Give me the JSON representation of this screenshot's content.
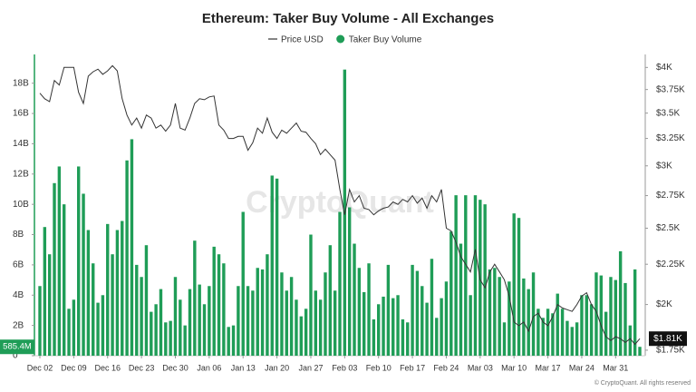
{
  "chart_data": {
    "type": "bar",
    "title": "Ethereum: Taker Buy Volume - All Exchanges",
    "watermark": "CryptoQuant",
    "footer": "© CryptoQuant. All rights reserved",
    "categories": [
      "Dec 02",
      null,
      null,
      null,
      null,
      null,
      null,
      "Dec 09",
      null,
      null,
      null,
      null,
      null,
      null,
      "Dec 16",
      null,
      null,
      null,
      null,
      null,
      null,
      "Dec 23",
      null,
      null,
      null,
      null,
      null,
      null,
      "Dec 30",
      null,
      null,
      null,
      null,
      null,
      null,
      "Jan 06",
      null,
      null,
      null,
      null,
      null,
      null,
      "Jan 13",
      null,
      null,
      null,
      null,
      null,
      null,
      "Jan 20",
      null,
      null,
      null,
      null,
      null,
      null,
      "Jan 27",
      null,
      null,
      null,
      null,
      null,
      null,
      "Feb 03",
      null,
      null,
      null,
      null,
      null,
      null,
      "Feb 10",
      null,
      null,
      null,
      null,
      null,
      null,
      "Feb 17",
      null,
      null,
      null,
      null,
      null,
      null,
      "Feb 24",
      null,
      null,
      null,
      null,
      null,
      null,
      "Mar 03",
      null,
      null,
      null,
      null,
      null,
      null,
      "Mar 10",
      null,
      null,
      null,
      null,
      null,
      null,
      "Mar 17",
      null,
      null,
      null,
      null,
      null,
      null,
      "Mar 24",
      null,
      null,
      null,
      null,
      null,
      null,
      "Mar 31",
      null,
      null,
      null,
      null,
      null
    ],
    "series": [
      {
        "name": "Price USD",
        "type": "line",
        "axis": "y2",
        "color": "#333333",
        "values": [
          3710,
          3650,
          3620,
          3850,
          3800,
          4000,
          4000,
          4000,
          3720,
          3600,
          3900,
          3950,
          3980,
          3920,
          3960,
          4020,
          3960,
          3650,
          3480,
          3380,
          3450,
          3350,
          3480,
          3450,
          3350,
          3380,
          3320,
          3380,
          3600,
          3350,
          3330,
          3450,
          3600,
          3650,
          3640,
          3670,
          3680,
          3380,
          3330,
          3250,
          3250,
          3270,
          3270,
          3140,
          3210,
          3350,
          3300,
          3450,
          3310,
          3250,
          3330,
          3300,
          3350,
          3400,
          3320,
          3310,
          3250,
          3200,
          3100,
          3150,
          3100,
          3050,
          2800,
          2600,
          2800,
          2700,
          2750,
          2650,
          2640,
          2600,
          2630,
          2650,
          2660,
          2700,
          2680,
          2720,
          2700,
          2750,
          2690,
          2730,
          2650,
          2750,
          2700,
          2800,
          2500,
          2480,
          2400,
          2300,
          2250,
          2200,
          2350,
          2150,
          2100,
          2200,
          2250,
          2200,
          2150,
          2050,
          1900,
          1880,
          1900,
          1850,
          1930,
          1950,
          1900,
          1880,
          1930,
          2000,
          1980,
          1970,
          1960,
          2000,
          2050,
          2070,
          2000,
          1960,
          1880,
          1820,
          1800,
          1820,
          1810,
          1790,
          1810,
          1780,
          1810
        ]
      },
      {
        "name": "Taker Buy Volume",
        "type": "bar",
        "color": "#1f9d57",
        "values": [
          4.6,
          8.5,
          6.7,
          11.4,
          12.5,
          10,
          3.1,
          3.7,
          12.5,
          10.7,
          8.3,
          6.1,
          3.5,
          4,
          8.7,
          6.7,
          8.3,
          8.9,
          12.9,
          14.3,
          6,
          5.2,
          7.3,
          2.9,
          3.4,
          4.4,
          2.2,
          2.3,
          5.2,
          3.7,
          2,
          4.4,
          7.6,
          4.7,
          3.4,
          4.6,
          7.2,
          6.7,
          6.1,
          1.9,
          2,
          4.6,
          9.5,
          4.6,
          4.3,
          5.8,
          5.7,
          6.7,
          11.9,
          11.7,
          5.5,
          4.3,
          5.2,
          3.7,
          2.6,
          3.1,
          8,
          4.3,
          3.7,
          5.5,
          7.3,
          4.3,
          9.5,
          18.9,
          9.8,
          7.4,
          5.8,
          4.2,
          6.1,
          2.4,
          3.4,
          3.9,
          6,
          3.8,
          4,
          2.4,
          2.2,
          6,
          5.6,
          4.6,
          3.5,
          6.4,
          2.5,
          3.8,
          4.9,
          8.2,
          10.6,
          7.4,
          10.6,
          4,
          10.6,
          10.3,
          10,
          5.7,
          5.8,
          5.2,
          2.2,
          4.9,
          9.4,
          9.1,
          5.1,
          4.4,
          5.5,
          3.1,
          2.5,
          3.1,
          2.8,
          4.1,
          3.1,
          2.3,
          1.9,
          2.2,
          4,
          4,
          3.4,
          5.5,
          5.3,
          2.9,
          5.2,
          5,
          6.9,
          4.8,
          2,
          5.7,
          0.5854
        ]
      }
    ],
    "ylim": [
      0,
      19.9
    ],
    "yticks": [
      0,
      {
        "value": 2,
        "label": "2B"
      },
      {
        "value": 4,
        "label": "4B"
      },
      {
        "value": 6,
        "label": "6B"
      },
      {
        "value": 8,
        "label": "8B"
      },
      {
        "value": 10,
        "label": "10B"
      },
      {
        "value": 12,
        "label": "12B"
      },
      {
        "value": 14,
        "label": "14B"
      },
      {
        "value": 16,
        "label": "16B"
      },
      {
        "value": 18,
        "label": "18B"
      }
    ],
    "y2lim": [
      1722,
      4155
    ],
    "y2_log": true,
    "y2ticks": [
      {
        "value": 1750,
        "label": "$1.75K"
      },
      {
        "value": 2000,
        "label": "$2K"
      },
      {
        "value": 2250,
        "label": "$2.25K"
      },
      {
        "value": 2500,
        "label": "$2.5K"
      },
      {
        "value": 2750,
        "label": "$2.75K"
      },
      {
        "value": 3000,
        "label": "$3K"
      },
      {
        "value": 3250,
        "label": "$3.25K"
      },
      {
        "value": 3500,
        "label": "$3.5K"
      },
      {
        "value": 3750,
        "label": "$3.75K"
      },
      {
        "value": 4000,
        "label": "$4K"
      }
    ],
    "current_value": {
      "value": 0.5854,
      "label": "585.4M"
    },
    "current_price": {
      "value": 1810,
      "label": "$1.81K"
    }
  }
}
